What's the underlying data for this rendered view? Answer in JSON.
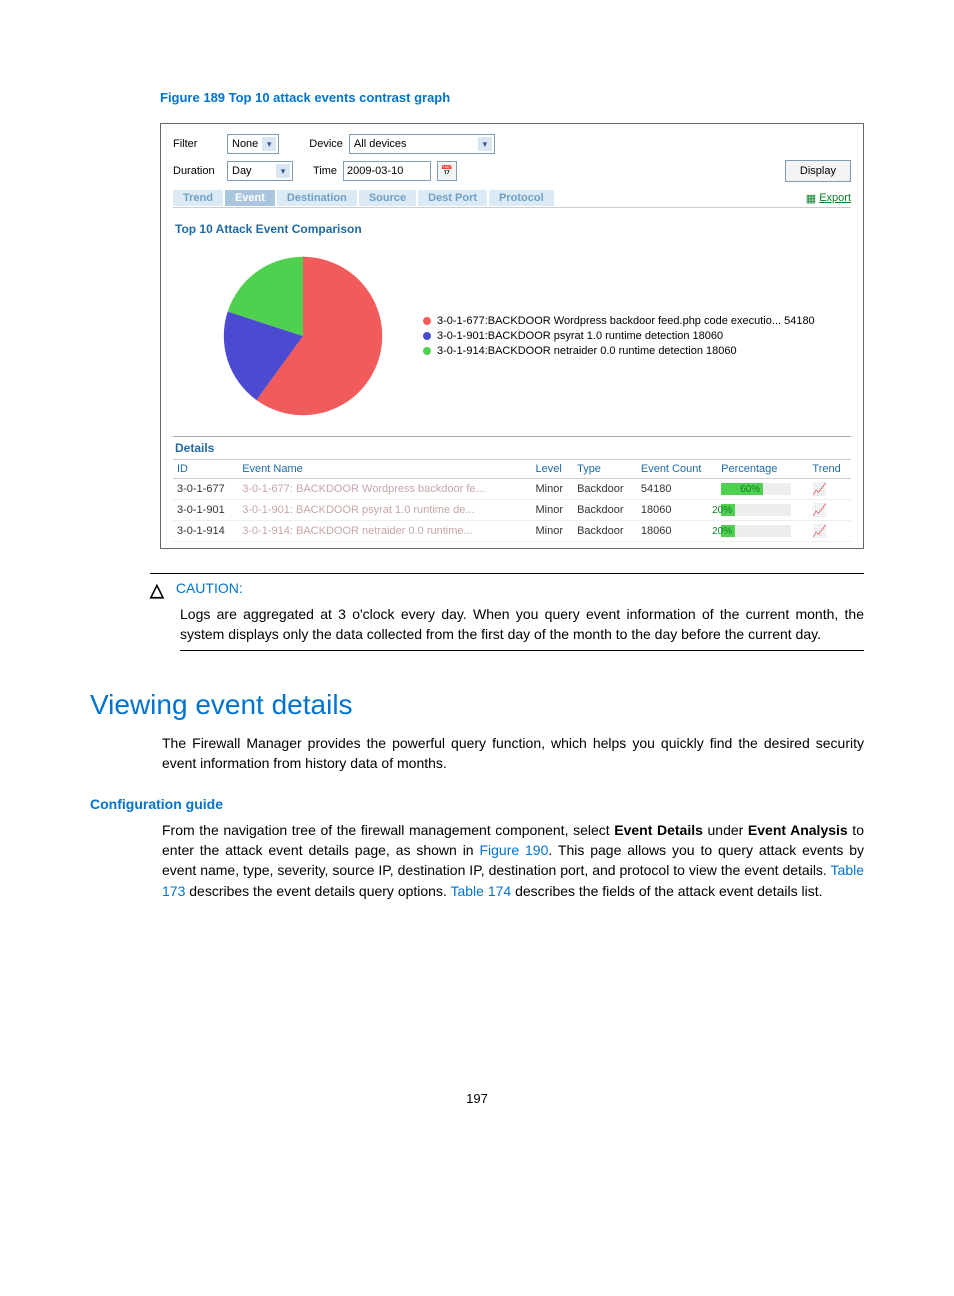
{
  "figure": {
    "caption": "Figure 189 Top 10 attack events contrast graph"
  },
  "filters": {
    "filter_label": "Filter",
    "filter_value": "None",
    "device_label": "Device",
    "device_value": "All devices",
    "duration_label": "Duration",
    "duration_value": "Day",
    "time_label": "Time",
    "time_value": "2009-03-10",
    "display_button": "Display"
  },
  "tabs": {
    "items": [
      "Trend",
      "Event",
      "Destination",
      "Source",
      "Dest Port",
      "Protocol"
    ],
    "active_index": 1,
    "export_label": "Export"
  },
  "chart": {
    "panel_title": "Top 10 Attack Event Comparison",
    "type": "pie",
    "slices": [
      {
        "label": "3-0-1-677:BACKDOOR Wordpress backdoor feed.php code executio... 54180",
        "value": 60,
        "color": "#f15b5b"
      },
      {
        "label": "3-0-1-901:BACKDOOR psyrat 1.0 runtime detection 18060",
        "value": 20,
        "color": "#4b4bd1"
      },
      {
        "label": "3-0-1-914:BACKDOOR netraider 0.0 runtime detection 18060",
        "value": 20,
        "color": "#4fd14f"
      }
    ],
    "background_color": "#ffffff"
  },
  "table": {
    "details_label": "Details",
    "columns": [
      "ID",
      "Event Name",
      "Level",
      "Type",
      "Event Count",
      "Percentage",
      "Trend"
    ],
    "rows": [
      {
        "id": "3-0-1-677",
        "event_name": "3-0-1-677: BACKDOOR Wordpress backdoor fe...",
        "level": "Minor",
        "type": "Backdoor",
        "count": "54180",
        "pct_label": "60%",
        "pct_value": 60,
        "bar_color": "#4fd14f"
      },
      {
        "id": "3-0-1-901",
        "event_name": "3-0-1-901: BACKDOOR psyrat 1.0 runtime de...",
        "level": "Minor",
        "type": "Backdoor",
        "count": "18060",
        "pct_label": "20%",
        "pct_value": 20,
        "bar_color": "#4fd14f"
      },
      {
        "id": "3-0-1-914",
        "event_name": "3-0-1-914: BACKDOOR netraider 0.0 runtime...",
        "level": "Minor",
        "type": "Backdoor",
        "count": "18060",
        "pct_label": "20%",
        "pct_value": 20,
        "bar_color": "#4fd14f"
      }
    ]
  },
  "caution": {
    "label": "CAUTION:",
    "body": "Logs are aggregated at 3 o'clock every day. When you query event information of the current month, the system displays only the data collected from the first day of the month to the day before the current day."
  },
  "section": {
    "heading": "Viewing event details",
    "intro": "The Firewall Manager provides the powerful query function, which helps you quickly find the desired security event information from history data of months.",
    "config_heading": "Configuration guide",
    "config_body_pre": "From the navigation tree of the firewall management component, select ",
    "bold1": "Event Details",
    "mid1": " under ",
    "bold2": "Event Analysis",
    "mid2": " to enter the attack event details page, as shown in ",
    "link_fig": "Figure 190",
    "mid3": ". This page allows you to query attack events by event name, type, severity, source IP, destination IP, destination port, and protocol to view the event details. ",
    "link_t173": "Table 173",
    "mid4": " describes the event details query options. ",
    "link_t174": "Table 174",
    "tail": " describes the fields of the attack event details list."
  },
  "page_number": "197"
}
